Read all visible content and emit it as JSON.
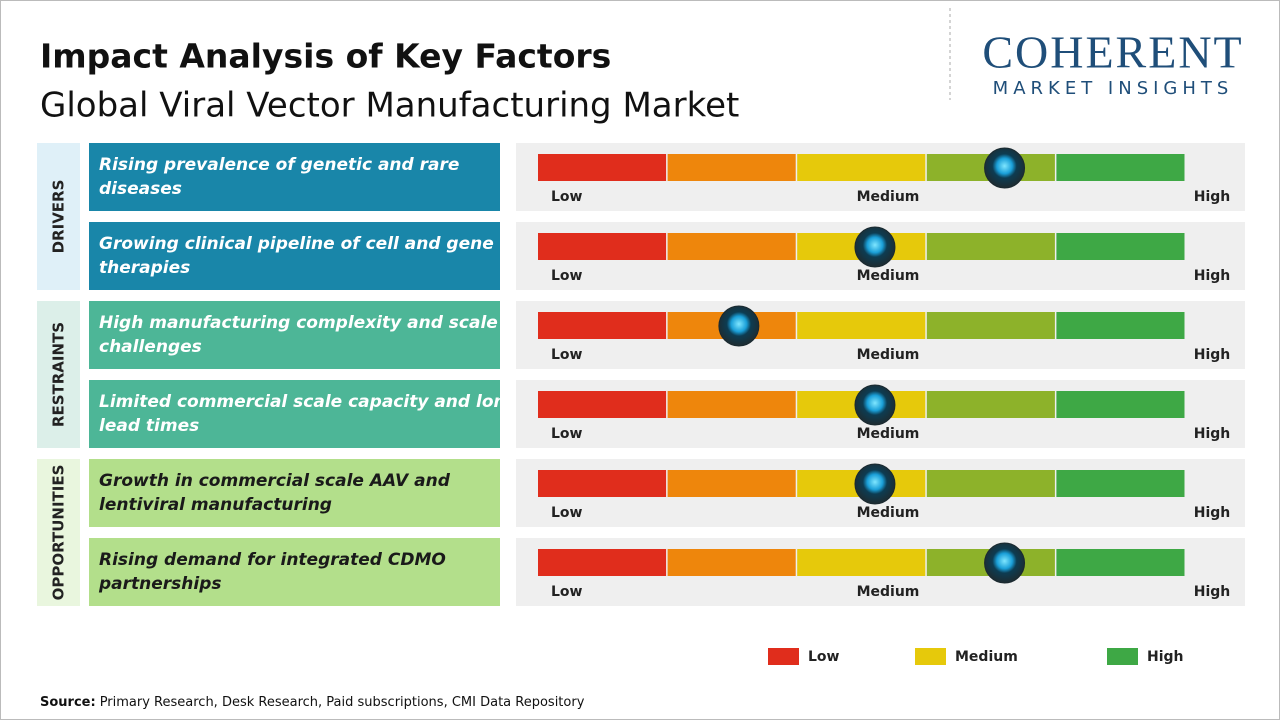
{
  "header": {
    "title": "Impact Analysis of Key Factors",
    "subtitle": "Global Viral Vector Manufacturing Market"
  },
  "logo": {
    "name": "COHERENT",
    "tagline": "MARKET INSIGHTS"
  },
  "scale_labels": [
    "Low",
    "Medium",
    "High"
  ],
  "segment_colors": [
    "#e02d1c",
    "#ee860c",
    "#e6c90b",
    "#8db22a",
    "#3ea845"
  ],
  "groups": [
    {
      "label": "DRIVERS",
      "color": "#1986a9",
      "fill": "#dff0f8",
      "text_color": "#ffffff",
      "factors": [
        {
          "text": "Rising prevalence of genetic and rare diseases",
          "impact": 3.6
        },
        {
          "text": "Growing clinical pipeline of cell and gene therapies",
          "impact": 2.6
        }
      ]
    },
    {
      "label": "RESTRAINTS",
      "color": "#4db697",
      "fill": "#dcefe9",
      "text_color": "#ffffff",
      "factors": [
        {
          "text": "High manufacturing complexity and scale up challenges",
          "impact": 1.55
        },
        {
          "text": "Limited commercial scale capacity and long lead times",
          "impact": 2.6
        }
      ]
    },
    {
      "label": "OPPORTUNITIES",
      "color": "#b3df8b",
      "fill": "#e9f6de",
      "text_color": "#1a1a1a",
      "factors": [
        {
          "text": "Growth in commercial scale AAV and lentiviral manufacturing",
          "impact": 2.6
        },
        {
          "text": "Rising demand for integrated CDMO partnerships",
          "impact": 3.6
        }
      ]
    }
  ],
  "legend": [
    {
      "label": "Low",
      "color": "#e02d1c"
    },
    {
      "label": "Medium",
      "color": "#e6c90b"
    },
    {
      "label": "High",
      "color": "#3ea845"
    }
  ],
  "source": {
    "label": "Source:",
    "text": "Primary Research, Desk Research, Paid subscriptions, CMI Data Repository"
  }
}
